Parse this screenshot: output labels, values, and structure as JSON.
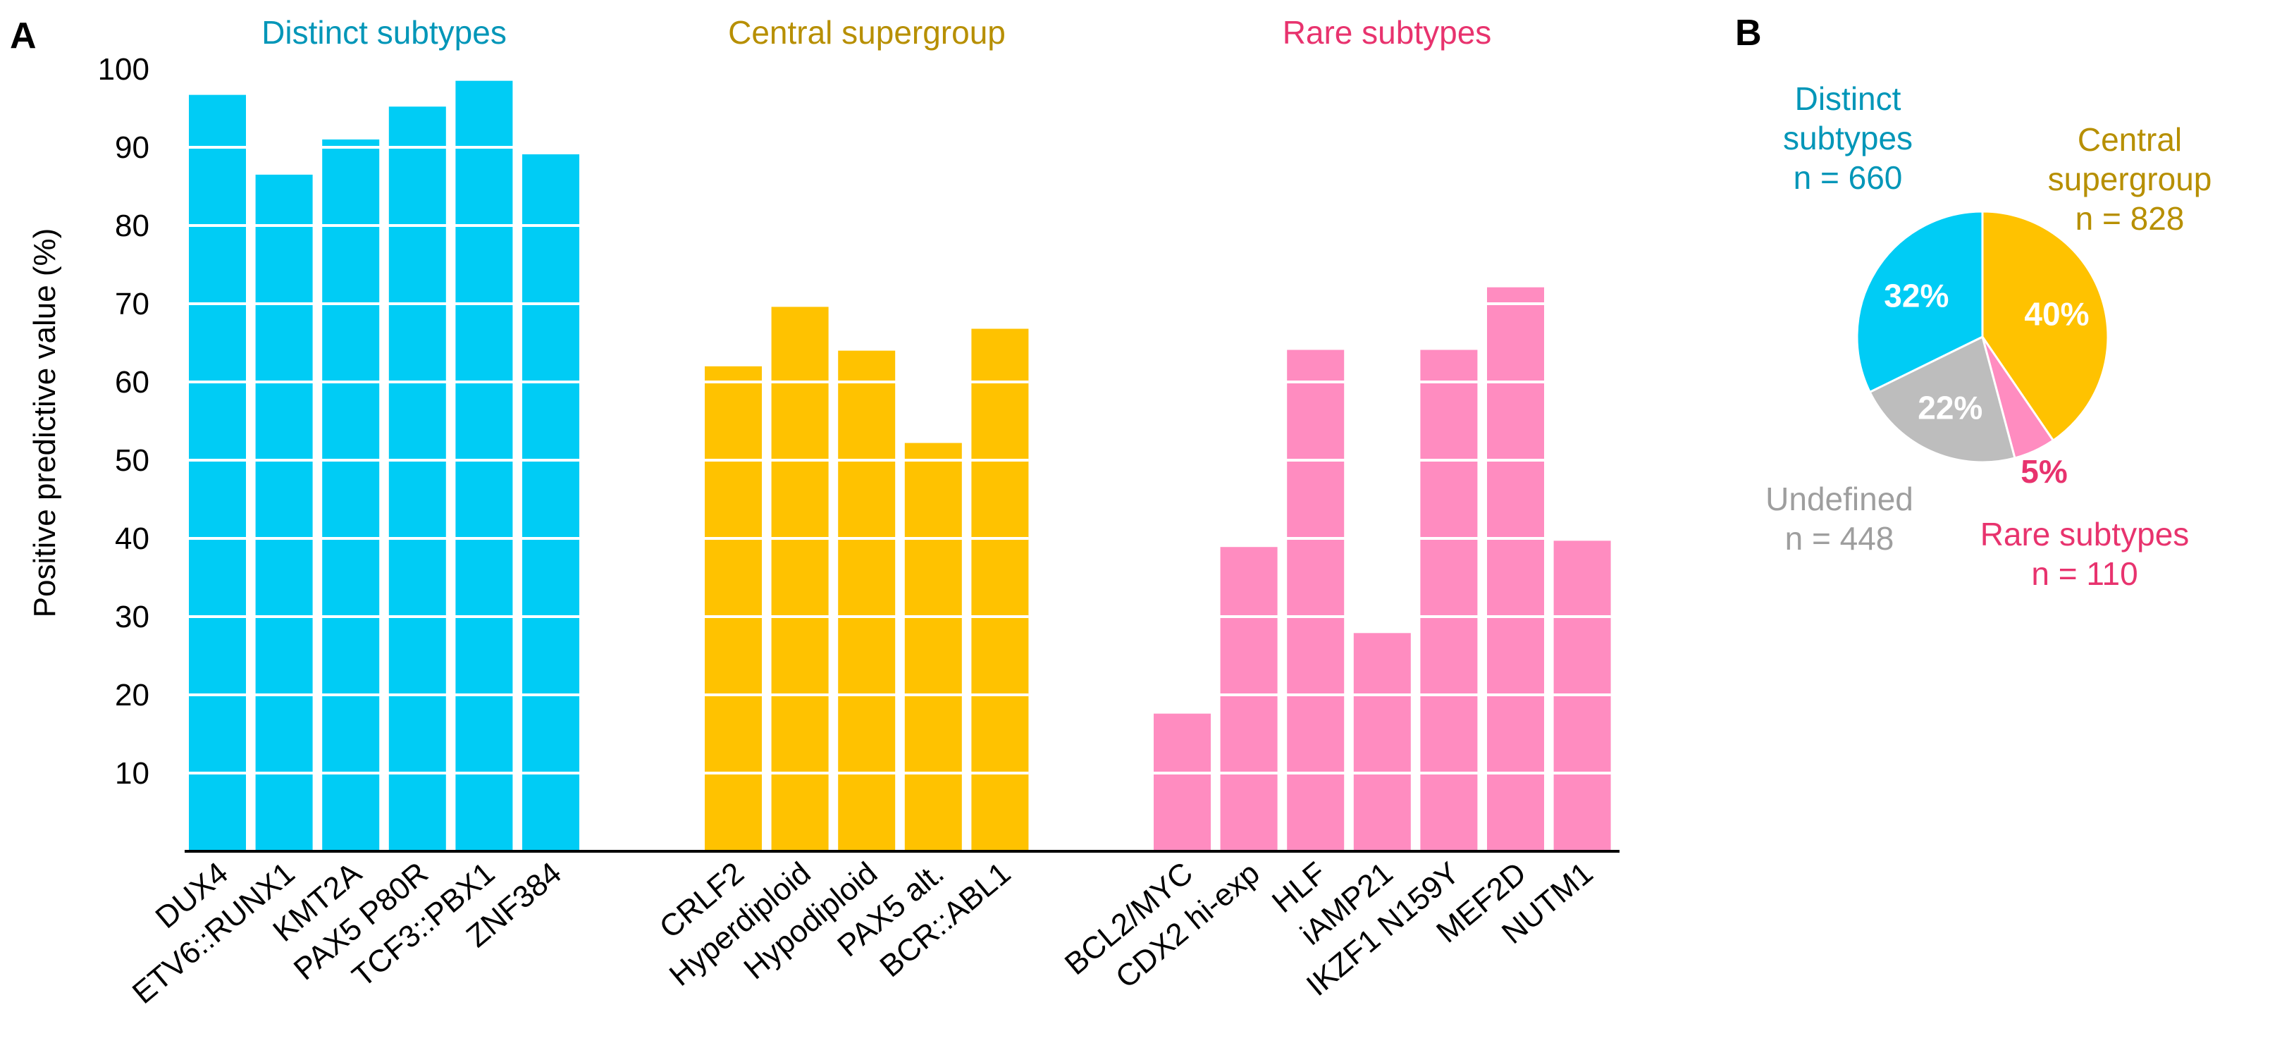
{
  "panel_a_label": "A",
  "panel_b_label": "B",
  "colors": {
    "distinct": "#00CCF5",
    "distinct_text": "#0096B8",
    "central": "#FFC200",
    "central_text": "#B78F00",
    "rare": "#FF8CC0",
    "rare_text": "#E8336E",
    "undefined": "#BDBDBD",
    "undefined_text": "#9E9E9E",
    "axis": "#000000",
    "gridline": "#ffffff"
  },
  "chart_data": [
    {
      "type": "bar",
      "panel": "A",
      "title": "",
      "xlabel": "",
      "ylabel": "Positive predictive value (%)",
      "ylim": [
        0,
        100
      ],
      "yticks": [
        10,
        20,
        30,
        40,
        50,
        60,
        70,
        80,
        90,
        100
      ],
      "grid": "white horizontal lines over bars",
      "groups": [
        {
          "name": "Distinct subtypes",
          "color_key": "distinct",
          "categories": [
            "DUX4",
            "ETV6::RUNX1",
            "KMT2A",
            "PAX5 P80R",
            "TCF3::PBX1",
            "ZNF384"
          ],
          "values": [
            96.7,
            86.5,
            91.0,
            95.2,
            98.5,
            89.1
          ]
        },
        {
          "name": "Central supergroup",
          "color_key": "central",
          "categories": [
            "CRLF2",
            "Hyperdiploid",
            "Hypodiploid",
            "PAX5 alt.",
            "BCR::ABL1"
          ],
          "values": [
            62.0,
            69.6,
            64.0,
            52.2,
            66.8
          ]
        },
        {
          "name": "Rare subtypes",
          "color_key": "rare",
          "categories": [
            "BCL2/MYC",
            "CDX2 hi-exp",
            "HLF",
            "iAMP21",
            "IKZF1 N159Y",
            "MEF2D",
            "NUTM1"
          ],
          "values": [
            17.6,
            38.9,
            64.1,
            27.9,
            64.1,
            72.1,
            39.7
          ]
        }
      ]
    },
    {
      "type": "pie",
      "panel": "B",
      "title": "",
      "slices": [
        {
          "label_line1": "Central",
          "label_line2": "supergroup",
          "n_text": "n = 828",
          "value": 828,
          "percent": "40%",
          "color_key": "central"
        },
        {
          "label_line1": "Rare subtypes",
          "label_line2": "",
          "n_text": "n = 110",
          "value": 110,
          "percent": "5%",
          "color_key": "rare"
        },
        {
          "label_line1": "Undefined",
          "label_line2": "",
          "n_text": "n = 448",
          "value": 448,
          "percent": "22%",
          "color_key": "undefined"
        },
        {
          "label_line1": "Distinct",
          "label_line2": "subtypes",
          "n_text": "n = 660",
          "value": 660,
          "percent": "32%",
          "color_key": "distinct"
        }
      ]
    }
  ]
}
